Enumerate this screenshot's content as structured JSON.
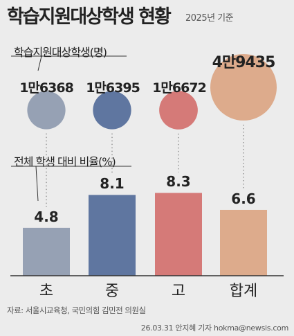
{
  "header": {
    "title": "학습지원대상학생 현황",
    "subtitle": "2025년 기준"
  },
  "labels": {
    "count_label": "학습지원대상학생(명)",
    "ratio_label": "전체 학생 대비 비율(%)"
  },
  "footer": {
    "source": "자료: 서울시교육청, 국민의힘 김민전 의원실",
    "credit": "26.03.31 안지혜 기자 hokma@newsis.com"
  },
  "colors": {
    "cho": "#96a1b4",
    "jung": "#5f76a0",
    "go": "#d57a78",
    "total": "#ddab8c"
  },
  "chart_data": {
    "type": "bar",
    "categories": [
      "초",
      "중",
      "고",
      "합계"
    ],
    "series": [
      {
        "name": "학습지원대상학생(명)",
        "values": [
          16368,
          16395,
          16672,
          49435
        ],
        "display": [
          "1만6368",
          "1만6395",
          "1만6672",
          "4만9435"
        ]
      },
      {
        "name": "전체 학생 대비 비율(%)",
        "values": [
          4.8,
          8.1,
          8.3,
          6.6
        ],
        "display": [
          "4.8",
          "8.1",
          "8.3",
          "6.6"
        ]
      }
    ],
    "title": "학습지원대상학생 현황",
    "subtitle": "2025년 기준",
    "ylim": [
      0,
      10
    ],
    "grid": false,
    "legend": "none"
  }
}
